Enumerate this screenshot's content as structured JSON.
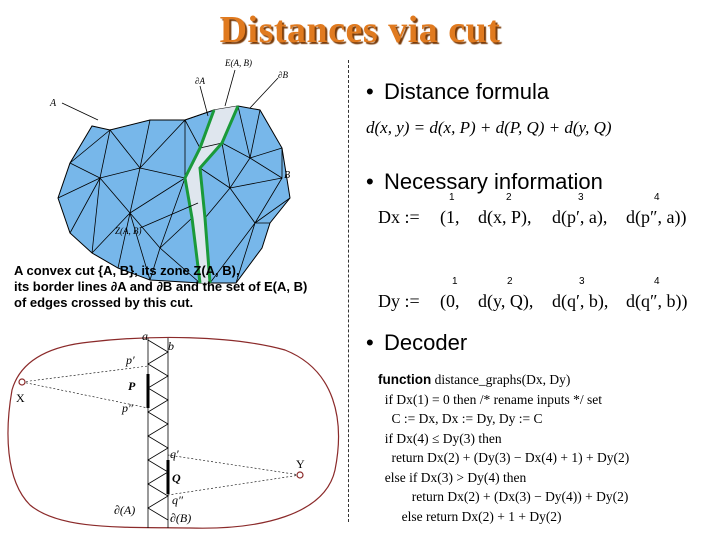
{
  "title": "Distances via cut",
  "bullets": {
    "b1": "Distance formula",
    "b2": "Necessary information",
    "b3": "Decoder"
  },
  "formula": "d(x, y) = d(x, P) + d(P, Q) + d(y, Q)",
  "dx": {
    "lhs": "Dx :=",
    "entries": [
      "(1,",
      "d(x, P),",
      "d(p′, a),",
      "d(p″, a))"
    ],
    "indices": [
      "1",
      "2",
      "3",
      "4"
    ]
  },
  "dy": {
    "lhs": "Dy :=",
    "entries": [
      "(0,",
      "d(y, Q),",
      "d(q′, b),",
      "d(q″, b))"
    ],
    "indices": [
      "1",
      "2",
      "3",
      "4"
    ]
  },
  "figure_labels": {
    "E": "E(A, B)",
    "dA": "∂A",
    "dB": "∂B",
    "A": "A",
    "B": "B",
    "Z": "Z(A, B)"
  },
  "caption": {
    "line1": "A convex cut {A, B}, its zone Z(A, B),",
    "line2": "its border lines ∂A and ∂B and the set of E(A, B)",
    "line3": "of edges crossed by this cut."
  },
  "cut_labels": {
    "a": "a",
    "b": "b",
    "p1": "p′",
    "P": "P",
    "p2": "p″",
    "q1": "q′",
    "Q": "Q",
    "q2": "q″",
    "dA": "∂(A)",
    "dB": "∂(B)",
    "x": "X",
    "y": "Y"
  },
  "code": {
    "l1_kw": "function",
    "l1": " distance_graphs(Dx, Dy)",
    "l2": "  if Dx(1) = 0 then /* rename inputs */ set",
    "l3": "    C := Dx, Dx := Dy, Dy := C",
    "l4": "  if Dx(4) ≤ Dy(3) then",
    "l5": "    return Dx(2) + (Dy(3) − Dx(4) + 1) + Dy(2)",
    "l6": "  else if Dx(3) > Dy(4) then",
    "l7": "          return Dx(2) + (Dx(3) − Dy(4)) + Dy(2)",
    "l8": "       else return Dx(2) + 1 + Dy(2)"
  }
}
